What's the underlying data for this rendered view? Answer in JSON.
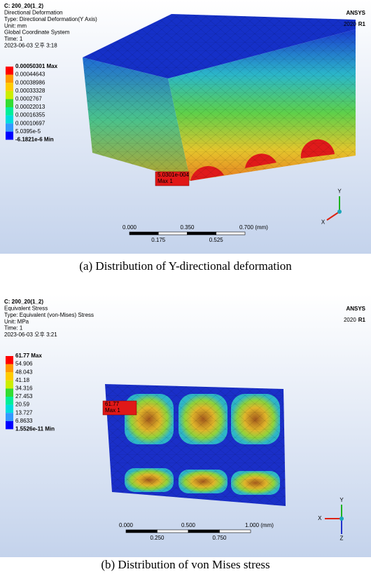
{
  "panels": [
    {
      "header": [
        "C: 200_20(1_2)",
        "Directional Deformation",
        "Type: Directional Deformation(Y Axis)",
        "Unit: mm",
        "Global Coordinate System",
        "Time: 1",
        "2023-06-03 오후 3:18"
      ],
      "logo": "ANSYS",
      "version": "2020",
      "release": "R1",
      "legend": [
        "0.00050301 Max",
        "0.00044643",
        "0.00038986",
        "0.00033328",
        "0.0002767",
        "0.00022013",
        "0.00016355",
        "0.00010697",
        "5.0395e-5",
        "-6.1821e-6 Min"
      ],
      "probe": [
        "5.0301e-004",
        "Max 1"
      ],
      "scale_top": [
        "0.000",
        "0.350",
        "0.700 (mm)"
      ],
      "scale_bottom": [
        "0.175",
        "0.525"
      ],
      "axes": [
        "Y",
        "X"
      ],
      "caption": "(a) Distribution of Y-directional deformation"
    },
    {
      "header": [
        "C: 200_20(1_2)",
        "Equivalent Stress",
        "Type: Equivalent (von-Mises) Stress",
        "Unit: MPa",
        "Time: 1",
        "2023-06-03 오후 3:21"
      ],
      "logo": "ANSYS",
      "version": "2020",
      "release": "R1",
      "legend": [
        "61.77 Max",
        "54.906",
        "48.043",
        "41.18",
        "34.316",
        "27.453",
        "20.59",
        "13.727",
        "6.8633",
        "1.5526e-11 Min"
      ],
      "probe": [
        "61.77",
        "Max 1"
      ],
      "scale_top": [
        "0.000",
        "0.500",
        "1.000 (mm)"
      ],
      "scale_bottom": [
        "0.250",
        "0.750"
      ],
      "axes": [
        "X",
        "Y",
        "Z"
      ],
      "caption": "(b) Distribution of von Mises stress"
    }
  ]
}
